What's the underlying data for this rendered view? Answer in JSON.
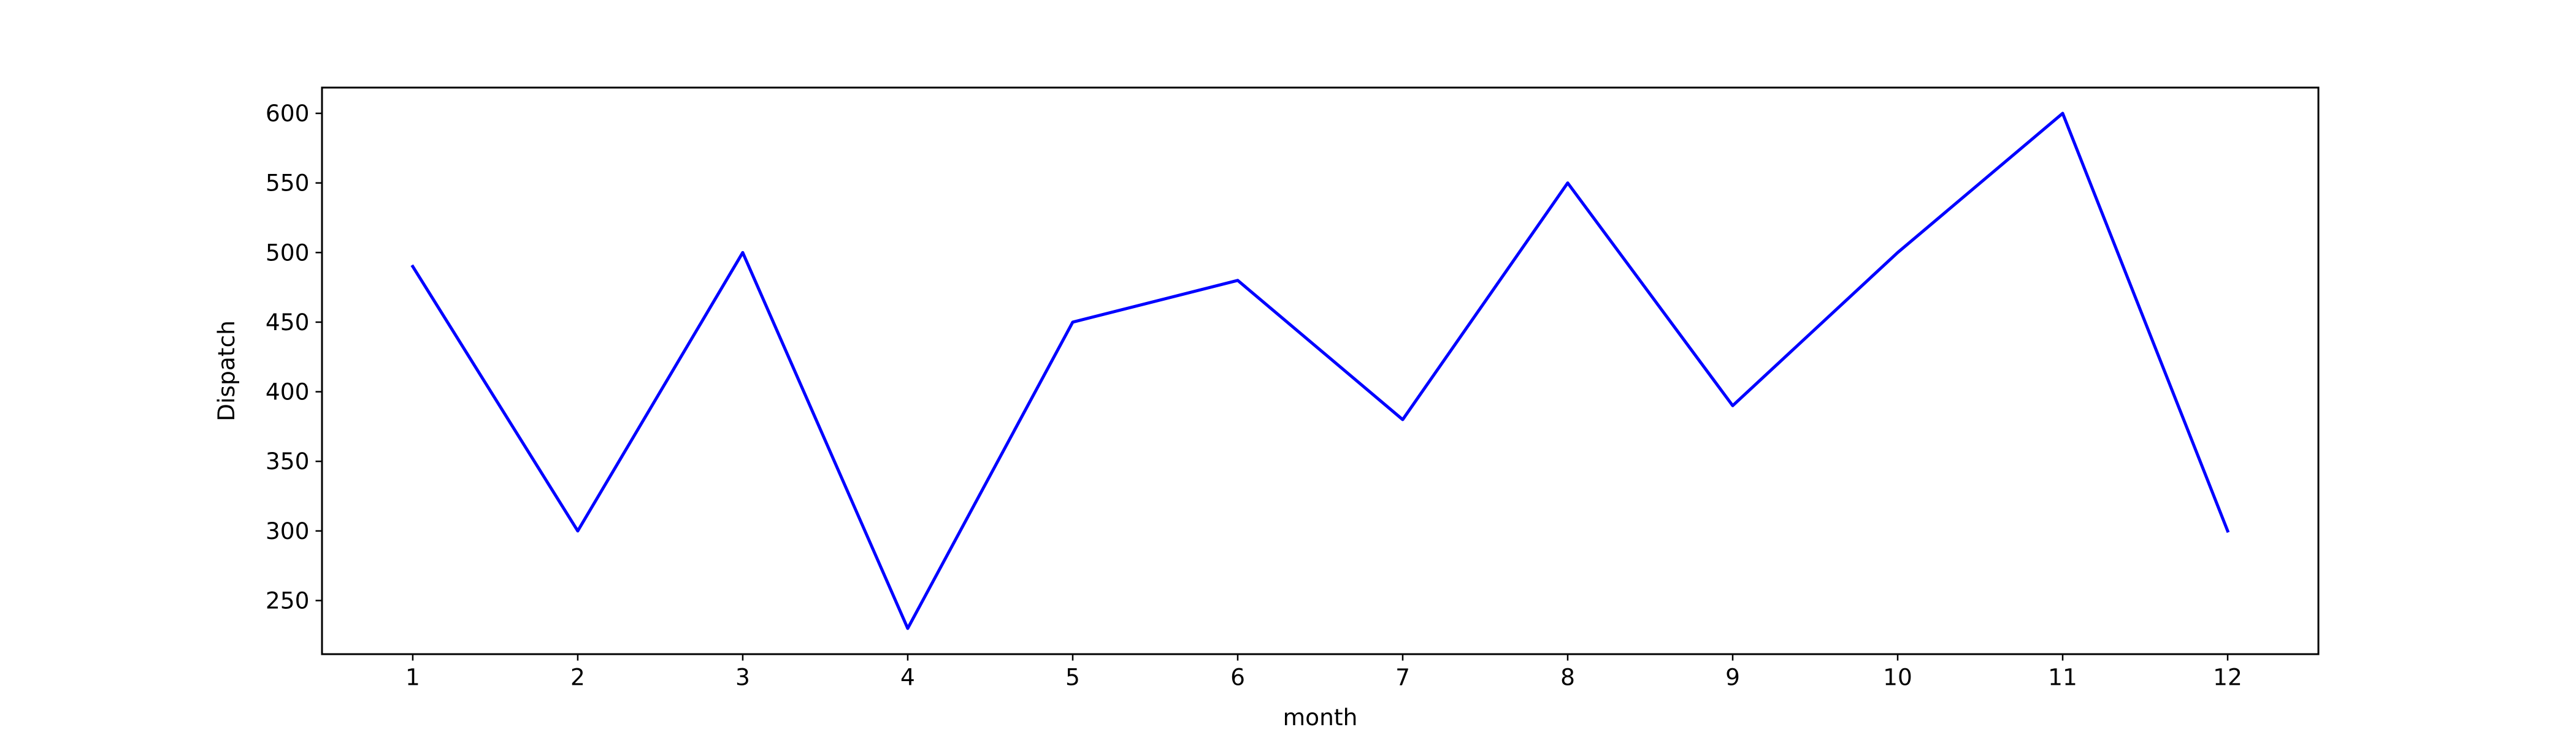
{
  "chart_data": {
    "type": "line",
    "title": "",
    "xlabel": "month",
    "ylabel": "Dispatch",
    "x": [
      1,
      2,
      3,
      4,
      5,
      6,
      7,
      8,
      9,
      10,
      11,
      12
    ],
    "series": [
      {
        "values": [
          490,
          300,
          500,
          230,
          450,
          480,
          380,
          550,
          390,
          500,
          600,
          300
        ],
        "color": "#0000ff"
      }
    ],
    "xlim": [
      0.45,
      12.55
    ],
    "ylim": [
      211.5,
      618.5
    ],
    "xticks": [
      1,
      2,
      3,
      4,
      5,
      6,
      7,
      8,
      9,
      10,
      11,
      12
    ],
    "yticks": [
      250,
      300,
      350,
      400,
      450,
      500,
      550,
      600
    ],
    "grid": false,
    "legend": "none"
  }
}
